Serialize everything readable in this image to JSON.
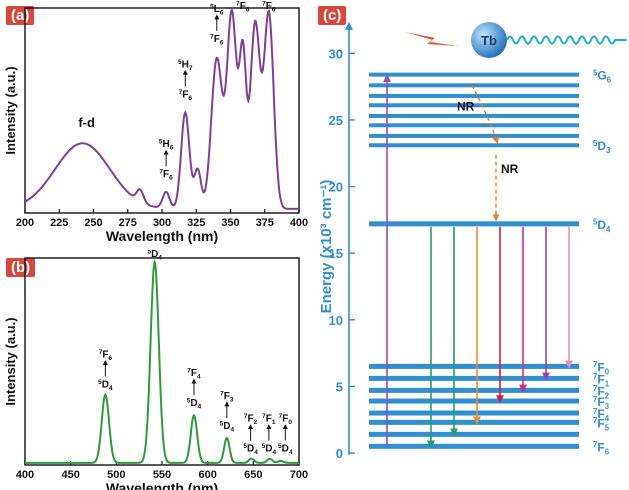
{
  "panels": {
    "a": {
      "badge": "(a)"
    },
    "b": {
      "badge": "(b)"
    },
    "c": {
      "badge": "(c)"
    }
  },
  "chart_data": [
    {
      "panel": "a",
      "type": "line",
      "xlabel": "Wavelength (nm)",
      "ylabel": "Intensity (a.u.)",
      "xlim": [
        200,
        400
      ],
      "xticks": [
        200,
        225,
        250,
        275,
        300,
        325,
        350,
        375,
        400
      ],
      "color": "#7e3f98",
      "peaks": [
        {
          "x": 242,
          "h": 0.32,
          "w": 20
        },
        {
          "x": 284,
          "h": 0.06,
          "w": 2.5
        },
        {
          "x": 303,
          "h": 0.08,
          "w": 2.5
        },
        {
          "x": 317,
          "h": 0.47,
          "w": 3
        },
        {
          "x": 326,
          "h": 0.19,
          "w": 2.5
        },
        {
          "x": 340,
          "h": 0.73,
          "w": 4
        },
        {
          "x": 351,
          "h": 0.95,
          "w": 3.5
        },
        {
          "x": 359,
          "h": 0.72,
          "w": 2.5
        },
        {
          "x": 368,
          "h": 0.9,
          "w": 3.5
        },
        {
          "x": 378,
          "h": 0.95,
          "w": 3.5
        }
      ],
      "baseline": 0.02,
      "annotations": [
        {
          "x": 245,
          "y": 0.42,
          "text": "f-d",
          "arrow": false
        },
        {
          "x": 303,
          "y": 0.16,
          "from": "7F6",
          "to": "5H6",
          "arrow": true
        },
        {
          "x": 317,
          "y": 0.55,
          "from": "7F6",
          "to": "5H7",
          "arrow": true
        },
        {
          "x": 340,
          "y": 0.82,
          "from": "7F6",
          "to": "5L6",
          "arrow": true
        },
        {
          "x": 359,
          "y": 0.98,
          "from": "7F6",
          "to": "5L9",
          "arrow": true
        },
        {
          "x": 378,
          "y": 0.98,
          "from": "7F6",
          "to": "5G6",
          "arrow": true
        }
      ]
    },
    {
      "panel": "b",
      "type": "line",
      "xlabel": "Wavelength (nm)",
      "ylabel": "Intensity (a.u.)",
      "xlim": [
        400,
        700
      ],
      "xticks": [
        400,
        450,
        500,
        550,
        600,
        650,
        700
      ],
      "color": "#2e9b3a",
      "peaks": [
        {
          "x": 488,
          "h": 0.33,
          "w": 4
        },
        {
          "x": 542,
          "h": 0.97,
          "w": 4.5
        },
        {
          "x": 585,
          "h": 0.23,
          "w": 3.5
        },
        {
          "x": 621,
          "h": 0.12,
          "w": 3
        },
        {
          "x": 648,
          "h": 0.02,
          "w": 3
        },
        {
          "x": 668,
          "h": 0.02,
          "w": 3
        },
        {
          "x": 680,
          "h": 0.01,
          "w": 3
        }
      ],
      "baseline": 0.01,
      "annotations": [
        {
          "x": 488,
          "y": 0.36,
          "from": "5D4",
          "to": "7F6",
          "arrow": true
        },
        {
          "x": 542,
          "y": 0.99,
          "from": "5D4",
          "to": "7F5",
          "arrow": true
        },
        {
          "x": 585,
          "y": 0.27,
          "from": "5D4",
          "to": "7F4",
          "arrow": true
        },
        {
          "x": 621,
          "y": 0.16,
          "from": "5D4",
          "to": "7F3",
          "arrow": true
        },
        {
          "x": 647,
          "y": 0.05,
          "from": "5D4",
          "to": "7F2",
          "arrow": true
        },
        {
          "x": 667,
          "y": 0.05,
          "from": "5D4",
          "to": "7F1",
          "arrow": true
        },
        {
          "x": 685,
          "y": 0.05,
          "from": "5D4",
          "to": "7F0",
          "arrow": true
        }
      ]
    },
    {
      "panel": "c",
      "type": "energy-level-diagram",
      "ylabel": "Energy (x10³ cm⁻¹)",
      "ylim": [
        0,
        31
      ],
      "yticks": [
        0,
        5,
        10,
        15,
        20,
        25,
        30
      ],
      "ion_label": "Tb",
      "levels_5G6_band": [
        28.4,
        27.6,
        26.8,
        26.1,
        25.3,
        24.6,
        23.8,
        23.1
      ],
      "level_5D4": 17.2,
      "levels_7F": [
        6.5,
        5.6,
        4.7,
        3.9,
        3.0,
        2.3,
        1.4,
        0.5
      ],
      "labels": {
        "5G6": {
          "y": 28.4
        },
        "5D3": {
          "y": 23.1
        },
        "5D4": {
          "y": 17.2
        },
        "7F0": {
          "y": 6.5
        },
        "7F1": {
          "y": 5.6
        },
        "7F2": {
          "y": 4.7
        },
        "7F3": {
          "y": 3.9
        },
        "7F4": {
          "y": 3.0
        },
        "7F5": {
          "y": 2.3
        },
        "7F6": {
          "y": 0.5
        }
      },
      "nr_labels": [
        "NR",
        "NR"
      ],
      "excitation": {
        "color": "#8a4fc7"
      },
      "emissions": [
        {
          "to": 0.5,
          "color": "#1fa06a"
        },
        {
          "to": 1.4,
          "color": "#1fa06a"
        },
        {
          "to": 2.3,
          "color": "#f08a2c"
        },
        {
          "to": 3.9,
          "color": "#d21f3c"
        },
        {
          "to": 4.7,
          "color": "#cc2e9a"
        },
        {
          "to": 5.6,
          "color": "#9a3fb5"
        },
        {
          "to": 6.5,
          "color": "#e58fc7"
        }
      ],
      "level_color": "#2f8fd1",
      "nr_color": "#f07a1e"
    }
  ]
}
